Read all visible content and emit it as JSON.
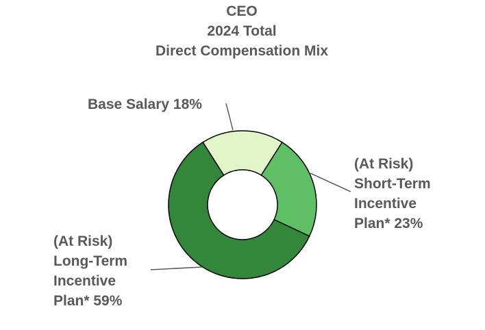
{
  "chart_data": {
    "type": "pie",
    "donut": true,
    "title_lines": [
      "CEO",
      "2024 Total",
      "Direct Compensation Mix"
    ],
    "slices": [
      {
        "name": "Base Salary",
        "value": 18,
        "color": "#e2f5c8",
        "label_lines": [
          "Base Salary 18%"
        ]
      },
      {
        "name": "(At Risk) Short-Term Incentive Plan*",
        "value": 23,
        "color": "#5fbf64",
        "label_lines": [
          "(At Risk)",
          "Short-Term",
          "Incentive",
          "Plan* 23%"
        ]
      },
      {
        "name": "(At Risk) Long-Term Incentive Plan*",
        "value": 59,
        "color": "#34873a",
        "label_lines": [
          "(At Risk)",
          "Long-Term",
          "Incentive",
          "Plan*  59%"
        ]
      }
    ]
  }
}
